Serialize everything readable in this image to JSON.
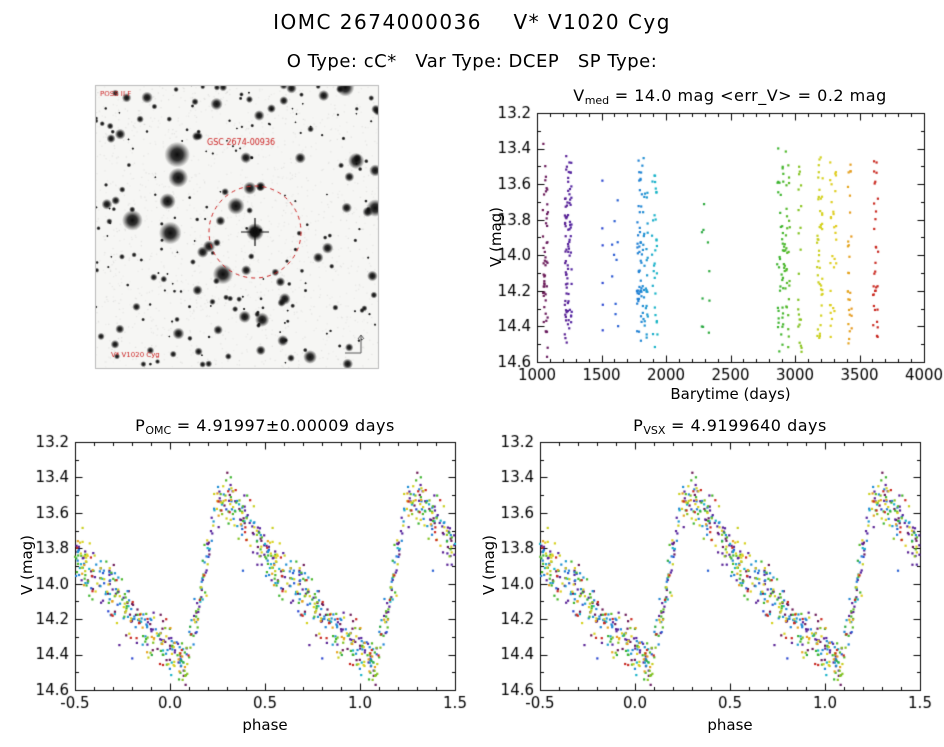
{
  "header": {
    "title": "IOMC 2674000036    V* V1020 Cyg",
    "subtitle": "O Type: cC*   Var Type: DCEP   SP Type:"
  },
  "finder": {
    "survey_label": "POSS II F",
    "source_label": "GSC 2674-00936",
    "bottom_label": "V* V1020 Cyg",
    "marker_color": "#cc2222",
    "compass_color": "#555555",
    "star_count": 250,
    "seed": 7
  },
  "colormap": {
    "by": "barytime_days",
    "domain": [
      1000,
      3700
    ],
    "stops": [
      [
        0,
        "#6e1440"
      ],
      [
        0.09,
        "#55209a"
      ],
      [
        0.18,
        "#2a3fd0"
      ],
      [
        0.3,
        "#1f86d4"
      ],
      [
        0.34,
        "#17b4c8"
      ],
      [
        0.48,
        "#2aa83c"
      ],
      [
        0.7,
        "#3cb42d"
      ],
      [
        0.76,
        "#8cc41e"
      ],
      [
        0.82,
        "#d8d21e"
      ],
      [
        0.86,
        "#e0cc1e"
      ],
      [
        0.905,
        "#e6961e"
      ],
      [
        0.96,
        "#cc2a1e"
      ],
      [
        1,
        "#c02020"
      ]
    ]
  },
  "model": {
    "mean_v_mag": 14.0,
    "err_v_mag": 0.2,
    "noise_mag": 0.07,
    "seed": 42,
    "phase_curve_knots": [
      [
        0.02,
        14.4
      ],
      [
        0.08,
        14.44
      ],
      [
        0.13,
        14.25
      ],
      [
        0.18,
        13.95
      ],
      [
        0.25,
        13.52
      ],
      [
        0.3,
        13.5
      ],
      [
        0.38,
        13.62
      ],
      [
        0.5,
        13.82
      ],
      [
        0.62,
        13.97
      ],
      [
        0.75,
        14.1
      ],
      [
        0.88,
        14.26
      ],
      [
        1.02,
        14.4
      ]
    ]
  },
  "chart_data": [
    {
      "id": "timeseries",
      "type": "scatter",
      "title": "V_med = 14.0 mag <err_V> = 0.2 mag",
      "title_parts": [
        {
          "t": "V"
        },
        {
          "s": "med"
        },
        {
          "t": " = 14.0 mag <err_V> = 0.2 mag"
        }
      ],
      "xlabel": "Barytime (days)",
      "ylabel": "V (mag)",
      "xlim": [
        1000,
        4000
      ],
      "ylim": [
        14.6,
        13.2
      ],
      "y_axis_inverted": true,
      "xticks": [
        "1000",
        "1500",
        "2000",
        "2500",
        "3000",
        "3500",
        "4000"
      ],
      "yticks": [
        "13.2",
        "13.4",
        "13.6",
        "13.8",
        "14.0",
        "14.2",
        "14.4",
        "14.6"
      ],
      "x_minor": 100,
      "y_minor": 0.1,
      "observation_clusters": [
        [
          1045,
          1085,
          50
        ],
        [
          1215,
          1270,
          85
        ],
        [
          1500,
          1515,
          6
        ],
        [
          1580,
          1630,
          10
        ],
        [
          1775,
          1860,
          85
        ],
        [
          1890,
          1935,
          30
        ],
        [
          2265,
          2340,
          10
        ],
        [
          2860,
          2960,
          75
        ],
        [
          3025,
          3055,
          22
        ],
        [
          3170,
          3215,
          45
        ],
        [
          3270,
          3320,
          30
        ],
        [
          3410,
          3440,
          28
        ],
        [
          3605,
          3645,
          32
        ]
      ],
      "v_range_observed": [
        13.38,
        14.5
      ]
    },
    {
      "id": "phase_omc",
      "type": "scatter",
      "title": "P_OMC = 4.91997±0.00009 days",
      "title_parts": [
        {
          "t": "P"
        },
        {
          "s": "OMC"
        },
        {
          "t": " = 4.91997±0.00009 days"
        }
      ],
      "xlabel": "phase",
      "ylabel": "V (mag)",
      "period_days": 4.91997,
      "period_err_days": 9e-05,
      "xlim": [
        -0.5,
        1.5
      ],
      "ylim": [
        14.6,
        13.2
      ],
      "xticks": [
        "-0.5",
        "0.0",
        "0.5",
        "1.0",
        "1.5"
      ],
      "yticks": [
        "13.2",
        "13.4",
        "13.6",
        "13.8",
        "14.0",
        "14.2",
        "14.4",
        "14.6"
      ],
      "x_minor": 0.1,
      "y_minor": 0.1
    },
    {
      "id": "phase_vsx",
      "type": "scatter",
      "title": "P_VSX = 4.9199640 days",
      "title_parts": [
        {
          "t": "P"
        },
        {
          "s": "VSX"
        },
        {
          "t": " = 4.9199640 days"
        }
      ],
      "xlabel": "phase",
      "ylabel": "V (mag)",
      "period_days": 4.919964,
      "xlim": [
        -0.5,
        1.5
      ],
      "ylim": [
        14.6,
        13.2
      ],
      "xticks": [
        "-0.5",
        "0.0",
        "0.5",
        "1.0",
        "1.5"
      ],
      "yticks": [
        "13.2",
        "13.4",
        "13.6",
        "13.8",
        "14.0",
        "14.2",
        "14.4",
        "14.6"
      ],
      "x_minor": 0.1,
      "y_minor": 0.1
    }
  ]
}
